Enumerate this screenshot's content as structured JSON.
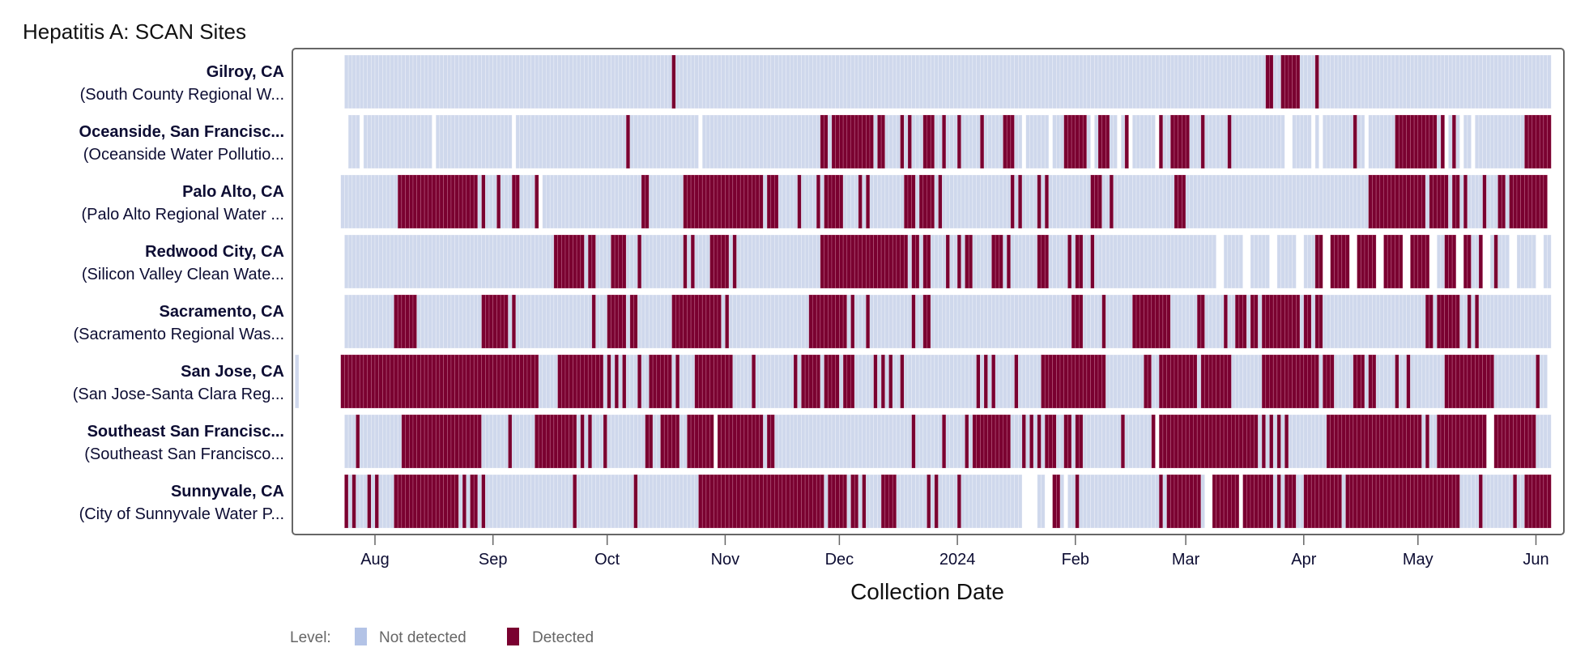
{
  "chart_data": {
    "type": "heatmap",
    "title": "Hepatitis A: SCAN Sites",
    "xlabel": "Collection Date",
    "ylabel": "",
    "day0": "2023-07-01",
    "day_unit": "days since day0",
    "x_ticks": [
      {
        "label": "Aug",
        "day": 31
      },
      {
        "label": "Sep",
        "day": 62
      },
      {
        "label": "Oct",
        "day": 92
      },
      {
        "label": "Nov",
        "day": 123
      },
      {
        "label": "Dec",
        "day": 153
      },
      {
        "label": "2024",
        "day": 184
      },
      {
        "label": "Feb",
        "day": 215
      },
      {
        "label": "Mar",
        "day": 244
      },
      {
        "label": "Apr",
        "day": 275
      },
      {
        "label": "May",
        "day": 305
      },
      {
        "label": "Jun",
        "day": 336
      }
    ],
    "xlim_days": [
      9,
      345
    ],
    "legend": {
      "title": "Level:",
      "placement": "bottom-left",
      "entries": [
        {
          "label": "Not detected",
          "color": "#b3c3e6"
        },
        {
          "label": "Detected",
          "color": "#7a0030"
        }
      ]
    },
    "colors": {
      "not_detected": "#cfd8ec",
      "detected": "#7a0030"
    },
    "sites": [
      {
        "name": "Gilroy, CA",
        "facility": "(South County Regional W...",
        "sampled": [
          [
            23,
            339
          ]
        ],
        "detected": [
          [
            109,
            109
          ],
          [
            265,
            266
          ],
          [
            269,
            273
          ],
          [
            278,
            278
          ]
        ]
      },
      {
        "name": "Oceanside, San Francisc...",
        "facility": "(Oceanside Water Pollutio...",
        "sampled": [
          [
            24,
            26
          ],
          [
            28,
            45
          ],
          [
            47,
            66
          ],
          [
            68,
            115
          ],
          [
            117,
            200
          ],
          [
            202,
            207
          ],
          [
            209,
            218
          ],
          [
            220,
            225
          ],
          [
            227,
            228
          ],
          [
            230,
            235
          ],
          [
            237,
            269
          ],
          [
            272,
            276
          ],
          [
            278,
            278
          ],
          [
            280,
            290
          ],
          [
            292,
            311
          ],
          [
            313,
            315
          ],
          [
            317,
            318
          ],
          [
            320,
            339
          ]
        ],
        "detected": [
          [
            97,
            97
          ],
          [
            148,
            149
          ],
          [
            151,
            161
          ],
          [
            163,
            164
          ],
          [
            169,
            169
          ],
          [
            171,
            171
          ],
          [
            175,
            177
          ],
          [
            180,
            180
          ],
          [
            184,
            184
          ],
          [
            190,
            190
          ],
          [
            196,
            198
          ],
          [
            212,
            217
          ],
          [
            221,
            223
          ],
          [
            228,
            228
          ],
          [
            237,
            237
          ],
          [
            240,
            244
          ],
          [
            248,
            248
          ],
          [
            255,
            255
          ],
          [
            288,
            288
          ],
          [
            299,
            309
          ],
          [
            311,
            311
          ],
          [
            314,
            314
          ],
          [
            333,
            339
          ]
        ]
      },
      {
        "name": "Palo Alto, CA",
        "facility": "(Palo Alto Regional Water ...",
        "sampled": [
          [
            22,
            73
          ],
          [
            75,
            338
          ]
        ],
        "detected": [
          [
            37,
            57
          ],
          [
            59,
            59
          ],
          [
            63,
            63
          ],
          [
            67,
            68
          ],
          [
            73,
            73
          ],
          [
            101,
            102
          ],
          [
            112,
            132
          ],
          [
            134,
            136
          ],
          [
            142,
            142
          ],
          [
            147,
            147
          ],
          [
            149,
            153
          ],
          [
            158,
            158
          ],
          [
            160,
            160
          ],
          [
            170,
            172
          ],
          [
            174,
            177
          ],
          [
            179,
            179
          ],
          [
            198,
            198
          ],
          [
            200,
            200
          ],
          [
            205,
            205
          ],
          [
            207,
            207
          ],
          [
            219,
            221
          ],
          [
            224,
            224
          ],
          [
            241,
            243
          ],
          [
            292,
            306
          ],
          [
            308,
            312
          ],
          [
            314,
            315
          ],
          [
            317,
            317
          ],
          [
            322,
            322
          ],
          [
            326,
            327
          ],
          [
            329,
            338
          ]
        ]
      },
      {
        "name": "Redwood City, CA",
        "facility": "(Silicon Valley Clean Wate...",
        "sampled": [
          [
            23,
            251
          ],
          [
            254,
            258
          ],
          [
            261,
            265
          ],
          [
            268,
            272
          ],
          [
            275,
            279
          ],
          [
            282,
            286
          ],
          [
            289,
            293
          ],
          [
            296,
            300
          ],
          [
            303,
            307
          ],
          [
            310,
            314
          ],
          [
            317,
            321
          ],
          [
            324,
            328
          ],
          [
            331,
            335
          ],
          [
            338,
            339
          ]
        ],
        "detected": [
          [
            78,
            85
          ],
          [
            87,
            88
          ],
          [
            93,
            96
          ],
          [
            100,
            100
          ],
          [
            112,
            112
          ],
          [
            114,
            114
          ],
          [
            119,
            123
          ],
          [
            125,
            125
          ],
          [
            148,
            170
          ],
          [
            172,
            173
          ],
          [
            175,
            176
          ],
          [
            181,
            181
          ],
          [
            184,
            184
          ],
          [
            186,
            187
          ],
          [
            193,
            195
          ],
          [
            197,
            197
          ],
          [
            205,
            207
          ],
          [
            213,
            213
          ],
          [
            215,
            216
          ],
          [
            219,
            219
          ],
          [
            278,
            279
          ],
          [
            282,
            286
          ],
          [
            289,
            293
          ],
          [
            296,
            300
          ],
          [
            303,
            307
          ],
          [
            312,
            314
          ],
          [
            317,
            318
          ],
          [
            321,
            321
          ],
          [
            325,
            325
          ]
        ]
      },
      {
        "name": "Sacramento, CA",
        "facility": "(Sacramento Regional Was...",
        "sampled": [
          [
            23,
            339
          ]
        ],
        "detected": [
          [
            36,
            41
          ],
          [
            59,
            65
          ],
          [
            67,
            67
          ],
          [
            88,
            88
          ],
          [
            92,
            96
          ],
          [
            98,
            99
          ],
          [
            109,
            121
          ],
          [
            123,
            123
          ],
          [
            145,
            154
          ],
          [
            156,
            156
          ],
          [
            160,
            160
          ],
          [
            172,
            172
          ],
          [
            175,
            176
          ],
          [
            214,
            216
          ],
          [
            222,
            222
          ],
          [
            230,
            239
          ],
          [
            247,
            248
          ],
          [
            254,
            254
          ],
          [
            257,
            259
          ],
          [
            261,
            262
          ],
          [
            264,
            273
          ],
          [
            275,
            276
          ],
          [
            278,
            279
          ],
          [
            307,
            308
          ],
          [
            310,
            315
          ],
          [
            318,
            318
          ],
          [
            320,
            320
          ]
        ]
      },
      {
        "name": "San Jose, CA",
        "facility": "(San Jose-Santa Clara Reg...",
        "sampled": [
          [
            10,
            10
          ],
          [
            22,
            338
          ]
        ],
        "detected": [
          [
            22,
            73
          ],
          [
            79,
            90
          ],
          [
            92,
            92
          ],
          [
            94,
            94
          ],
          [
            96,
            96
          ],
          [
            100,
            100
          ],
          [
            103,
            108
          ],
          [
            110,
            110
          ],
          [
            115,
            124
          ],
          [
            130,
            130
          ],
          [
            141,
            141
          ],
          [
            143,
            147
          ],
          [
            149,
            152
          ],
          [
            154,
            156
          ],
          [
            162,
            162
          ],
          [
            164,
            164
          ],
          [
            166,
            166
          ],
          [
            169,
            169
          ],
          [
            189,
            189
          ],
          [
            191,
            191
          ],
          [
            193,
            193
          ],
          [
            199,
            199
          ],
          [
            206,
            222
          ],
          [
            233,
            234
          ],
          [
            237,
            246
          ],
          [
            248,
            255
          ],
          [
            264,
            278
          ],
          [
            280,
            282
          ],
          [
            288,
            290
          ],
          [
            292,
            293
          ],
          [
            299,
            299
          ],
          [
            302,
            302
          ],
          [
            312,
            324
          ],
          [
            336,
            336
          ]
        ]
      },
      {
        "name": "Southeast San Francisc...",
        "facility": "(Southeast San Francisco...",
        "sampled": [
          [
            23,
            119
          ],
          [
            121,
            235
          ],
          [
            237,
            322
          ],
          [
            325,
            339
          ]
        ],
        "detected": [
          [
            26,
            26
          ],
          [
            38,
            58
          ],
          [
            66,
            66
          ],
          [
            73,
            83
          ],
          [
            85,
            85
          ],
          [
            87,
            87
          ],
          [
            91,
            91
          ],
          [
            102,
            103
          ],
          [
            106,
            110
          ],
          [
            113,
            119
          ],
          [
            121,
            132
          ],
          [
            134,
            135
          ],
          [
            172,
            172
          ],
          [
            180,
            180
          ],
          [
            186,
            186
          ],
          [
            188,
            197
          ],
          [
            201,
            201
          ],
          [
            203,
            203
          ],
          [
            205,
            205
          ],
          [
            207,
            209
          ],
          [
            212,
            213
          ],
          [
            215,
            216
          ],
          [
            227,
            227
          ],
          [
            235,
            235
          ],
          [
            237,
            262
          ],
          [
            264,
            264
          ],
          [
            266,
            266
          ],
          [
            268,
            268
          ],
          [
            270,
            270
          ],
          [
            281,
            305
          ],
          [
            307,
            307
          ],
          [
            310,
            322
          ],
          [
            325,
            335
          ]
        ]
      },
      {
        "name": "Sunnyvale, CA",
        "facility": "(City of Sunnyvale Water P...",
        "sampled": [
          [
            23,
            200
          ],
          [
            205,
            206
          ],
          [
            209,
            211
          ],
          [
            213,
            248
          ],
          [
            251,
            257
          ],
          [
            259,
            339
          ]
        ],
        "detected": [
          [
            23,
            23
          ],
          [
            25,
            25
          ],
          [
            29,
            29
          ],
          [
            31,
            31
          ],
          [
            36,
            52
          ],
          [
            54,
            54
          ],
          [
            56,
            57
          ],
          [
            59,
            59
          ],
          [
            83,
            83
          ],
          [
            99,
            99
          ],
          [
            116,
            148
          ],
          [
            150,
            154
          ],
          [
            156,
            157
          ],
          [
            159,
            159
          ],
          [
            164,
            167
          ],
          [
            176,
            176
          ],
          [
            178,
            178
          ],
          [
            184,
            184
          ],
          [
            209,
            210
          ],
          [
            215,
            215
          ],
          [
            237,
            237
          ],
          [
            239,
            247
          ],
          [
            251,
            257
          ],
          [
            259,
            266
          ],
          [
            268,
            268
          ],
          [
            270,
            272
          ],
          [
            275,
            284
          ],
          [
            286,
            315
          ],
          [
            321,
            321
          ],
          [
            330,
            330
          ],
          [
            333,
            339
          ]
        ]
      }
    ]
  }
}
